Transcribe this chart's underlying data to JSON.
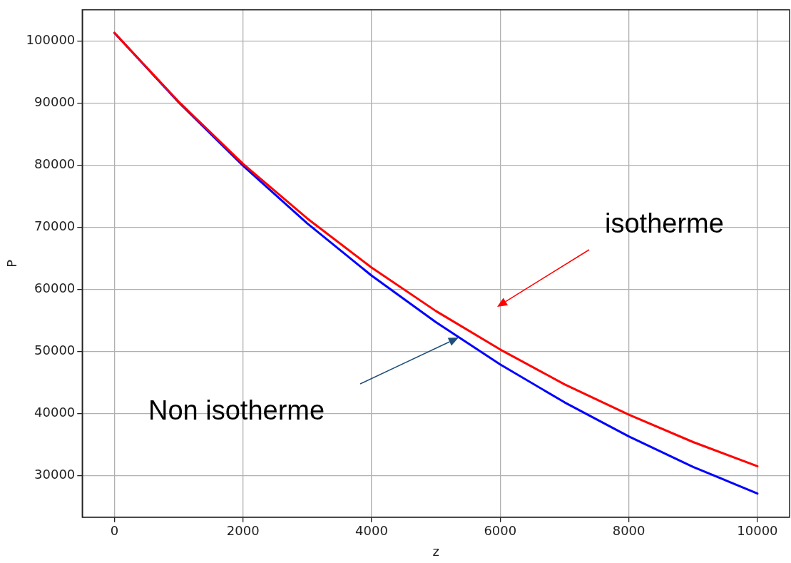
{
  "chart_data": {
    "type": "line",
    "xlabel": "z",
    "ylabel": "P",
    "x": [
      0,
      1000,
      2000,
      3000,
      4000,
      5000,
      6000,
      7000,
      8000,
      9000,
      10000
    ],
    "series": [
      {
        "color": "#ff0000",
        "values": [
          101300,
          90200,
          80200,
          71400,
          63500,
          56500,
          50300,
          44700,
          39800,
          35400,
          31500
        ]
      },
      {
        "color": "#0000ff",
        "values": [
          101300,
          90100,
          79900,
          70600,
          62200,
          54700,
          47900,
          41800,
          36300,
          31400,
          27100
        ]
      }
    ],
    "xlim": [
      -500,
      10500
    ],
    "xticks": [
      0,
      2000,
      4000,
      6000,
      8000,
      10000
    ],
    "ylim": [
      23300,
      105000
    ],
    "yticks": [
      30000,
      40000,
      50000,
      60000,
      70000,
      80000,
      90000,
      100000
    ],
    "grid": true,
    "legend": false,
    "marker": "none",
    "line_style": "solid",
    "annotations": [
      "isotherme",
      "Non isotherme"
    ]
  }
}
